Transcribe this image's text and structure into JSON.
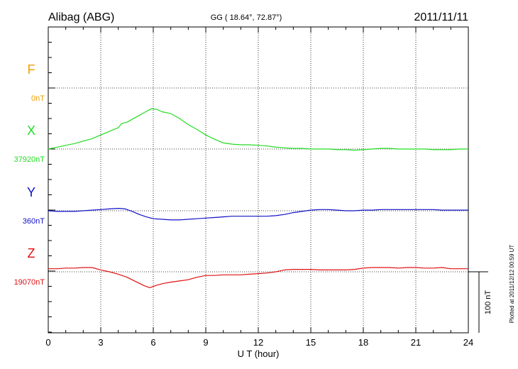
{
  "header": {
    "station": "Alibag (ABG)",
    "coords": "GG ( 18.64°,  72.87°)",
    "date": "2011/11/11"
  },
  "footer": {
    "plotted_note": "Plotted at 2011/12/12 00:59 UT"
  },
  "colors": {
    "F": "#f0a000",
    "X": "#22dd22",
    "Y": "#1010c8",
    "Z": "#e01010"
  },
  "chart_data": {
    "type": "line",
    "xlabel": "U T (hour)",
    "xlim": [
      0,
      24
    ],
    "x_ticks": [
      "0",
      "3",
      "6",
      "9",
      "12",
      "15",
      "18",
      "21",
      "24"
    ],
    "scale_bar": {
      "value": 100,
      "label": "100 nT"
    },
    "grid": true,
    "series": [
      {
        "name": "F",
        "baseline_label": "0nT",
        "baseline": 0,
        "x": [],
        "values": []
      },
      {
        "name": "X",
        "baseline_label": "37920nT",
        "baseline": 37920,
        "x": [
          0,
          0.5,
          1,
          1.5,
          2,
          2.5,
          3,
          3.5,
          4,
          4.2,
          4.5,
          5,
          5.5,
          5.9,
          6.2,
          6.5,
          7,
          7.5,
          8,
          8.5,
          9,
          9.5,
          10,
          10.5,
          11,
          11.5,
          12,
          12.5,
          13,
          13.5,
          14,
          14.5,
          15,
          15.5,
          16,
          16.5,
          17,
          17.5,
          18,
          18.5,
          19,
          19.5,
          20,
          20.5,
          21,
          21.5,
          22,
          22.5,
          23,
          23.5,
          24
        ],
        "values": [
          37920,
          37923,
          37926,
          37929,
          37933,
          37937,
          37943,
          37949,
          37955,
          37962,
          37964,
          37972,
          37980,
          37986,
          37985,
          37981,
          37978,
          37970,
          37960,
          37952,
          37943,
          37936,
          37930,
          37928,
          37927,
          37927,
          37926,
          37925,
          37923,
          37922,
          37921,
          37921,
          37920,
          37920,
          37920,
          37919,
          37919,
          37918,
          37919,
          37920,
          37921,
          37921,
          37920,
          37920,
          37920,
          37920,
          37919,
          37919,
          37919,
          37920,
          37920
        ]
      },
      {
        "name": "Y",
        "baseline_label": "360nT",
        "baseline": 360,
        "x": [
          0,
          0.5,
          1,
          1.5,
          2,
          2.5,
          3,
          3.5,
          4,
          4.4,
          4.8,
          5.2,
          5.6,
          6,
          6.5,
          7,
          7.5,
          8,
          8.5,
          9,
          9.5,
          10,
          10.5,
          11,
          11.5,
          12,
          12.5,
          13,
          13.5,
          14,
          14.5,
          15,
          15.5,
          16,
          16.5,
          17,
          17.5,
          18,
          18.5,
          19,
          19.5,
          20,
          20.5,
          21,
          21.5,
          22,
          22.5,
          23,
          23.5,
          24
        ],
        "values": [
          360,
          359,
          359,
          359,
          360,
          361,
          362,
          363,
          364,
          363,
          359,
          354,
          350,
          347,
          346,
          345,
          345,
          346,
          347,
          348,
          349,
          350,
          351,
          351,
          351,
          351,
          351,
          352,
          354,
          357,
          359,
          361,
          362,
          362,
          361,
          360,
          360,
          361,
          361,
          362,
          362,
          362,
          362,
          362,
          362,
          362,
          361,
          361,
          361,
          361
        ]
      },
      {
        "name": "Z",
        "baseline_label": "19070nT",
        "baseline": 19070,
        "x": [
          0,
          0.5,
          1,
          1.5,
          2,
          2.5,
          3,
          3.5,
          4,
          4.5,
          5,
          5.5,
          5.8,
          6.2,
          6.6,
          7,
          7.5,
          8,
          8.5,
          9,
          9.5,
          10,
          10.5,
          11,
          11.5,
          12,
          12.5,
          13,
          13.5,
          14,
          14.5,
          15,
          15.5,
          16,
          16.5,
          17,
          17.5,
          18,
          18.5,
          19,
          19.5,
          20,
          20.5,
          21,
          21.5,
          22,
          22.5,
          23,
          23.5,
          24
        ],
        "values": [
          19075,
          19075,
          19076,
          19076,
          19077,
          19077,
          19073,
          19070,
          19066,
          19061,
          19054,
          19047,
          19044,
          19048,
          19051,
          19053,
          19055,
          19057,
          19061,
          19064,
          19064,
          19065,
          19065,
          19065,
          19066,
          19067,
          19068,
          19070,
          19073,
          19074,
          19074,
          19074,
          19073,
          19073,
          19073,
          19073,
          19074,
          19076,
          19077,
          19077,
          19077,
          19076,
          19077,
          19077,
          19076,
          19076,
          19077,
          19075,
          19075,
          19075
        ]
      }
    ]
  }
}
